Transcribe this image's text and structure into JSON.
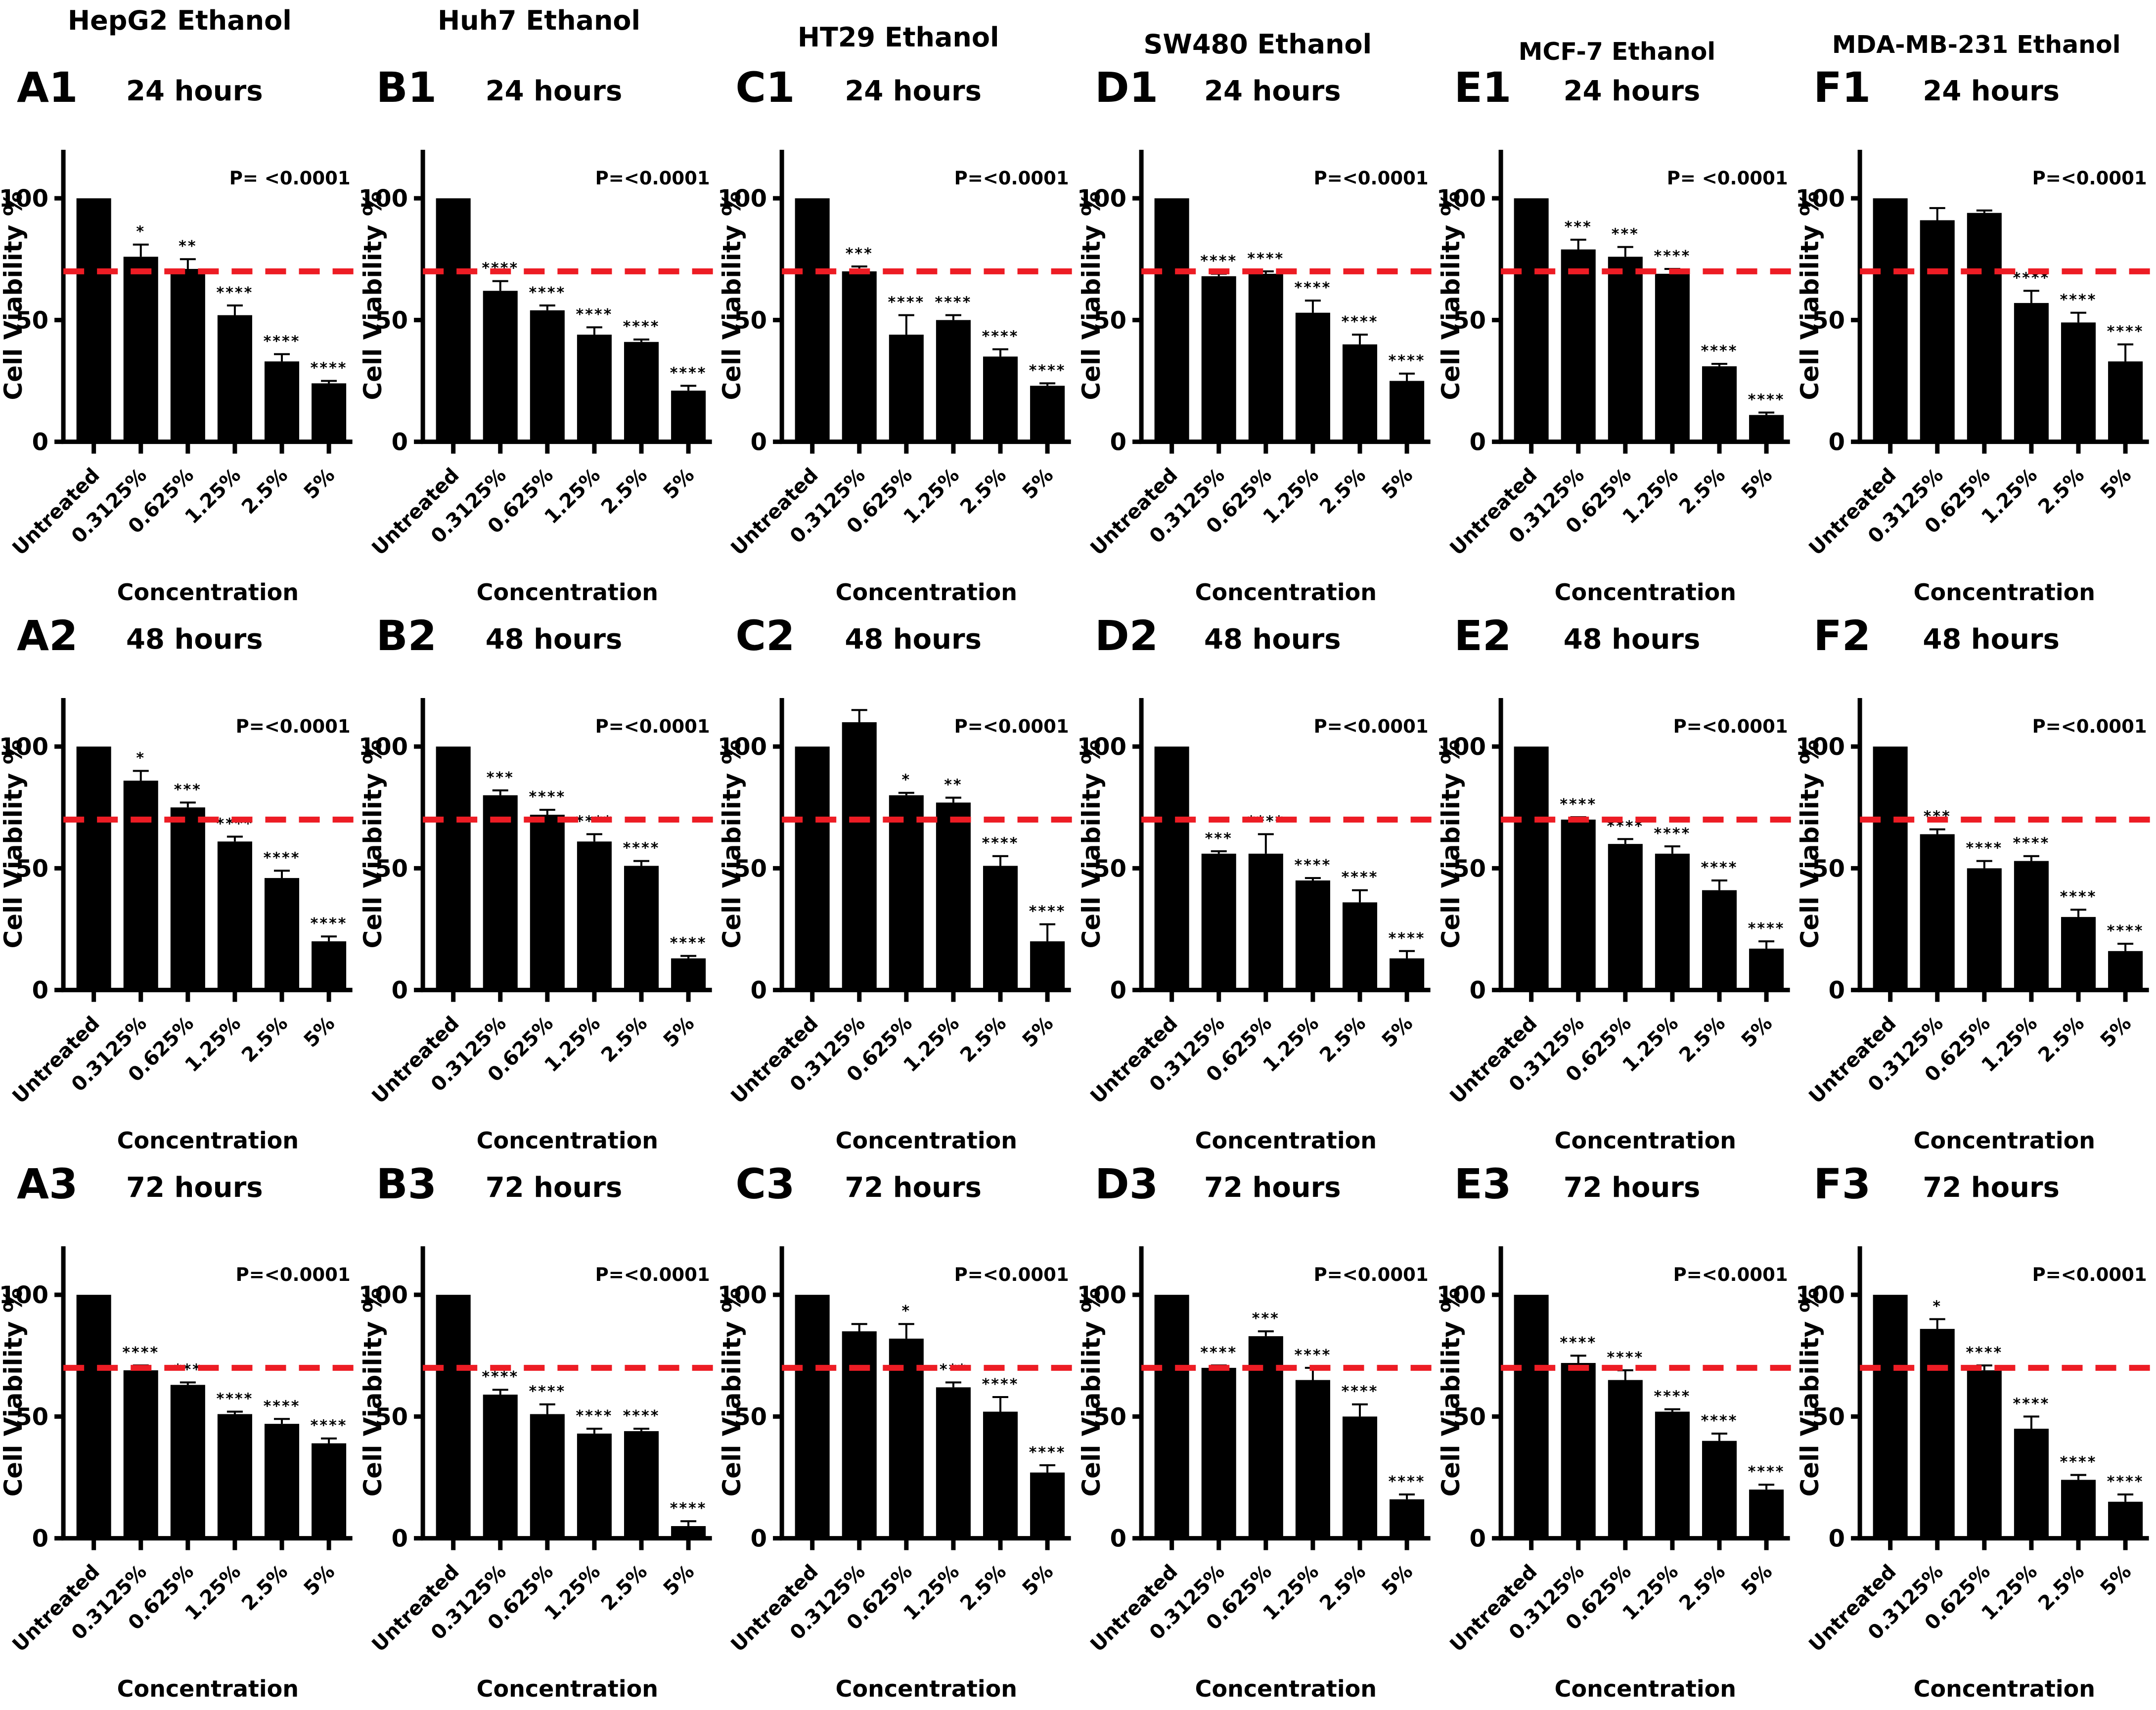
{
  "figure": {
    "column_titles": [
      "HepG2 Ethanol",
      "Huh7 Ethanol",
      "HT29 Ethanol",
      "SW480 Ethanol",
      "MCF-7 Ethanol",
      "MDA-MB-231 Ethanol"
    ],
    "row_subtitles": [
      "24 hours",
      "48 hours",
      "72 hours"
    ],
    "y_axis_label": "Cell Viability %",
    "x_axis_label": "Concentration"
  },
  "chart_data": {
    "type": "bar",
    "shared": {
      "categories": [
        "Untreated",
        "0.3125%",
        "0.625%",
        "1.25%",
        "2.5%",
        "5%"
      ],
      "ylabel": "Cell Viability %",
      "xlabel": "Concentration",
      "ylim": [
        0,
        120
      ],
      "yticks": [
        0,
        50,
        100
      ],
      "threshold_line": 70,
      "grid": false,
      "bar_color": "#000000",
      "threshold_color": "#ed1c24",
      "error_bars": "upper SD whiskers"
    },
    "panels": [
      {
        "id": "A1",
        "cell_line": "HepG2 Ethanol",
        "title": "24 hours",
        "p_label": "P= <0.0001",
        "values": [
          100,
          76,
          71,
          52,
          33,
          24
        ],
        "errors": [
          0,
          5,
          4,
          4,
          3,
          1
        ],
        "significance": [
          "",
          "*",
          "**",
          "****",
          "****",
          "****"
        ]
      },
      {
        "id": "B1",
        "cell_line": "Huh7 Ethanol",
        "title": "24 hours",
        "p_label": "P=<0.0001",
        "values": [
          100,
          62,
          54,
          44,
          41,
          21
        ],
        "errors": [
          0,
          4,
          2,
          3,
          1,
          2
        ],
        "significance": [
          "",
          "****",
          "****",
          "****",
          "****",
          "****"
        ]
      },
      {
        "id": "C1",
        "cell_line": "HT29 Ethanol",
        "title": "24 hours",
        "p_label": "P=<0.0001",
        "values": [
          100,
          70,
          44,
          50,
          35,
          23
        ],
        "errors": [
          0,
          2,
          8,
          2,
          3,
          1
        ],
        "significance": [
          "",
          "***",
          "****",
          "****",
          "****",
          "****"
        ]
      },
      {
        "id": "D1",
        "cell_line": "SW480 Ethanol",
        "title": "24 hours",
        "p_label": "P=<0.0001",
        "values": [
          100,
          68,
          69,
          53,
          40,
          25
        ],
        "errors": [
          0,
          1,
          1,
          5,
          4,
          3
        ],
        "significance": [
          "",
          "****",
          "****",
          "****",
          "****",
          "****"
        ]
      },
      {
        "id": "E1",
        "cell_line": "MCF-7 Ethanol",
        "title": "24 hours",
        "p_label": "P= <0.0001",
        "values": [
          100,
          79,
          76,
          69,
          31,
          11
        ],
        "errors": [
          0,
          4,
          4,
          2,
          1,
          1
        ],
        "significance": [
          "",
          "***",
          "***",
          "****",
          "****",
          "****"
        ]
      },
      {
        "id": "F1",
        "cell_line": "MDA-MB-231 Ethanol",
        "title": "24 hours",
        "p_label": "P=<0.0001",
        "values": [
          100,
          91,
          94,
          57,
          49,
          33
        ],
        "errors": [
          0,
          5,
          1,
          5,
          4,
          7
        ],
        "significance": [
          "",
          "",
          "",
          "****",
          "****",
          "****"
        ]
      },
      {
        "id": "A2",
        "cell_line": "HepG2 Ethanol",
        "title": "48 hours",
        "p_label": "P=<0.0001",
        "values": [
          100,
          86,
          75,
          61,
          46,
          20
        ],
        "errors": [
          0,
          4,
          2,
          2,
          3,
          2
        ],
        "significance": [
          "",
          "*",
          "***",
          "****",
          "****",
          "****"
        ]
      },
      {
        "id": "B2",
        "cell_line": "Huh7 Ethanol",
        "title": "48 hours",
        "p_label": "P=<0.0001",
        "values": [
          100,
          80,
          72,
          61,
          51,
          13
        ],
        "errors": [
          0,
          2,
          2,
          3,
          2,
          1
        ],
        "significance": [
          "",
          "***",
          "****",
          "****",
          "****",
          "****"
        ]
      },
      {
        "id": "C2",
        "cell_line": "HT29 Ethanol",
        "title": "48 hours",
        "p_label": "P=<0.0001",
        "values": [
          100,
          110,
          80,
          77,
          51,
          20
        ],
        "errors": [
          0,
          5,
          1,
          2,
          4,
          7
        ],
        "significance": [
          "",
          "",
          "*",
          "**",
          "****",
          "****"
        ]
      },
      {
        "id": "D2",
        "cell_line": "SW480 Ethanol",
        "title": "48 hours",
        "p_label": "P=<0.0001",
        "values": [
          100,
          56,
          56,
          45,
          36,
          13
        ],
        "errors": [
          0,
          1,
          8,
          1,
          5,
          3
        ],
        "significance": [
          "",
          "***",
          "****",
          "****",
          "****",
          "****"
        ]
      },
      {
        "id": "E2",
        "cell_line": "MCF-7 Ethanol",
        "title": "48 hours",
        "p_label": "P=<0.0001",
        "values": [
          100,
          70,
          60,
          56,
          41,
          17
        ],
        "errors": [
          0,
          1,
          2,
          3,
          4,
          3
        ],
        "significance": [
          "",
          "****",
          "****",
          "****",
          "****",
          "****"
        ]
      },
      {
        "id": "F2",
        "cell_line": "MDA-MB-231 Ethanol",
        "title": "48 hours",
        "p_label": "P=<0.0001",
        "values": [
          100,
          64,
          50,
          53,
          30,
          16
        ],
        "errors": [
          0,
          2,
          3,
          2,
          3,
          3
        ],
        "significance": [
          "",
          "***",
          "****",
          "****",
          "****",
          "****"
        ]
      },
      {
        "id": "A3",
        "cell_line": "HepG2 Ethanol",
        "title": "72 hours",
        "p_label": "P=<0.0001",
        "values": [
          100,
          69,
          63,
          51,
          47,
          39
        ],
        "errors": [
          0,
          2,
          1,
          1,
          2,
          2
        ],
        "significance": [
          "",
          "****",
          "***",
          "****",
          "****",
          "****"
        ]
      },
      {
        "id": "B3",
        "cell_line": "Huh7 Ethanol",
        "title": "72 hours",
        "p_label": "P=<0.0001",
        "values": [
          100,
          59,
          51,
          43,
          44,
          5
        ],
        "errors": [
          0,
          2,
          4,
          2,
          1,
          2
        ],
        "significance": [
          "",
          "****",
          "****",
          "****",
          "****",
          "****"
        ]
      },
      {
        "id": "C3",
        "cell_line": "HT29 Ethanol",
        "title": "72 hours",
        "p_label": "P=<0.0001",
        "values": [
          100,
          85,
          82,
          62,
          52,
          27
        ],
        "errors": [
          0,
          3,
          6,
          2,
          6,
          3
        ],
        "significance": [
          "",
          "",
          "*",
          "***",
          "****",
          "****"
        ]
      },
      {
        "id": "D3",
        "cell_line": "SW480 Ethanol",
        "title": "72 hours",
        "p_label": "P=<0.0001",
        "values": [
          100,
          70,
          83,
          65,
          50,
          16
        ],
        "errors": [
          0,
          1,
          2,
          5,
          5,
          2
        ],
        "significance": [
          "",
          "****",
          "***",
          "****",
          "****",
          "****"
        ]
      },
      {
        "id": "E3",
        "cell_line": "MCF-7 Ethanol",
        "title": "72 hours",
        "p_label": "P=<0.0001",
        "values": [
          100,
          72,
          65,
          52,
          40,
          20
        ],
        "errors": [
          0,
          3,
          4,
          1,
          3,
          2
        ],
        "significance": [
          "",
          "****",
          "****",
          "****",
          "****",
          "****"
        ]
      },
      {
        "id": "F3",
        "cell_line": "MDA-MB-231 Ethanol",
        "title": "72 hours",
        "p_label": "P=<0.0001",
        "values": [
          100,
          86,
          69,
          45,
          24,
          15
        ],
        "errors": [
          0,
          4,
          2,
          5,
          2,
          3
        ],
        "significance": [
          "",
          "*",
          "****",
          "****",
          "****",
          "****"
        ]
      }
    ]
  }
}
